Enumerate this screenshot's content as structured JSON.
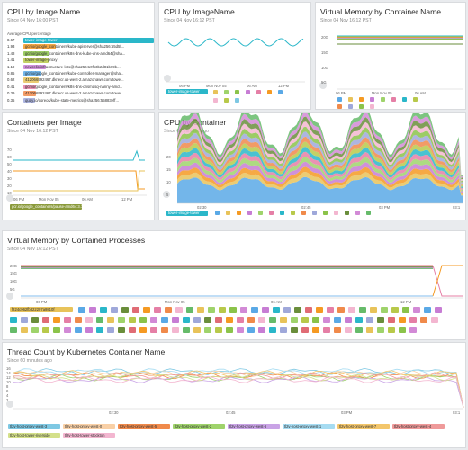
{
  "panels": {
    "cpu_by_image_name": {
      "title": "CPU by Image Name",
      "subtitle": "Since 04 Nov 16:00 PST",
      "header": "Average CPU percentage",
      "rows": [
        {
          "value": "8.67",
          "label": "tower-image-tower",
          "color": "#2ab7c9"
        },
        {
          "value": "1.93",
          "label": "gcr.io/google_containers/kube-apiserver@sha256:55d5f...",
          "color": "#f59a23"
        },
        {
          "value": "1.48",
          "label": "gcr.io/google_containers/k8s-dns-kube-dns-amd64@sha...",
          "color": "#8bc34a"
        },
        {
          "value": "1.41",
          "label": "tower-image-proxy",
          "color": "#b8c94a"
        },
        {
          "value": "1.19",
          "label": "newrelic/infrastructure-k8s@sha256:10fb3b2d81b69b...",
          "color": "#c77dd4"
        },
        {
          "value": "0.85",
          "label": "gcr.io/google_containers/kube-controller-manager@sha...",
          "color": "#5aa9e6"
        },
        {
          "value": "0.62",
          "label": "412066592467.dkr.ecr.us-west-2.amazonaws.com/towe...",
          "color": "#e8c35a"
        },
        {
          "value": "0.41",
          "label": "gcr.io/google_containers/k8s-dns-dnsmasq-nanny-amd...",
          "color": "#e57fa6"
        },
        {
          "value": "0.39",
          "label": "412066592467.dkr.ecr.us-west-2.amazonaws.com/towe...",
          "color": "#f08a4b"
        },
        {
          "value": "0.35",
          "label": "quay.io/coreos/kube-state-metrics@sha256:55883eff...",
          "color": "#9fa8da"
        }
      ]
    },
    "cpu_by_imagename": {
      "title": "CPU by ImageName",
      "subtitle": "Since 04 Nov 16:12 PST",
      "xticks": [
        "06 PM",
        "Mon Nov 05",
        "06 AM",
        "12 PM"
      ],
      "legend": "tower-image-tower",
      "colors": [
        "#e8c35a",
        "#9fd36b",
        "#8bc34a",
        "#c77dd4",
        "#e57fa6",
        "#f59a23",
        "#5aa9e6",
        "#f3b6d0",
        "#b8c94a",
        "#7ec8e3"
      ]
    },
    "vmem_by_container": {
      "title": "Virtual Memory by Container Name",
      "subtitle": "Since 04 Nov 16:12 PST",
      "yticks": [
        "20G",
        "15G",
        "10G",
        "5G"
      ],
      "xticks": [
        "06 PM",
        "Mon Nov 05",
        "06 AM"
      ],
      "colors": [
        "#5aa9e6",
        "#e8c35a",
        "#f59a23",
        "#c77dd4",
        "#9fd36b",
        "#e57fa6",
        "#2ab7c9",
        "#b8c94a",
        "#f08a4b",
        "#9fa8da",
        "#8bc34a",
        "#f3b6d0"
      ]
    },
    "containers_per_image": {
      "title": "Containers per Image",
      "subtitle": "Since 04 Nov 16:12 PST",
      "yticks": [
        "70",
        "60",
        "50",
        "40",
        "30",
        "20",
        "10"
      ],
      "xticks": [
        "06 PM",
        "Mon Nov 05",
        "06 AM",
        "12 PM"
      ],
      "legend": "gcr.io/google_containers/pause-amd64:3.1"
    },
    "cpu_by_container": {
      "title": "CPU by Container",
      "subtitle": "Since 60 minutes ago",
      "yticks": [
        "20",
        "15",
        "10",
        "5"
      ],
      "xticks": [
        "02:30",
        "02:45",
        "03 PM",
        "03:1"
      ],
      "legend": "tower-image-tower",
      "colors": [
        "#5aa9e6",
        "#e8c35a",
        "#f59a23",
        "#c77dd4",
        "#9fd36b",
        "#e57fa6",
        "#2ab7c9",
        "#b8c94a",
        "#f08a4b",
        "#9fa8da",
        "#8bc34a",
        "#f3b6d0",
        "#6a8e3b",
        "#d28ad6",
        "#66bb6a"
      ]
    },
    "vmem_by_processes": {
      "title": "Virtual Memory by Contained Processes",
      "subtitle": "Since 04 Nov 16:12 PST",
      "yticks": [
        "20G",
        "15G",
        "10G",
        "5G"
      ],
      "xticks": [
        "06 PM",
        "Mon Nov 05",
        "06 AM",
        "12 PM"
      ],
      "legend": "f224c962fb322207a9810f",
      "colors": [
        "#5aa9e6",
        "#e8c35a",
        "#f59a23",
        "#c77dd4",
        "#9fd36b",
        "#e57fa6",
        "#2ab7c9",
        "#b8c94a",
        "#f08a4b",
        "#9fa8da",
        "#8bc34a",
        "#f3b6d0",
        "#6a8e3b",
        "#d28ad6",
        "#66bb6a",
        "#e06c75"
      ]
    },
    "thread_count": {
      "title": "Thread Count by Kubernetes Container Name",
      "subtitle": "Since 60 minutes ago",
      "yticks": [
        "16",
        "14",
        "12",
        "10",
        "8",
        "6",
        "4",
        "2"
      ],
      "xticks": [
        "02:30",
        "02:45",
        "03 PM",
        "03:1"
      ],
      "legend": [
        {
          "label": "tl2v-host-proxy-west-3",
          "color": "#7ec8e3"
        },
        {
          "label": "tl2v-host-proxy-west-0",
          "color": "#f9d0a6"
        },
        {
          "label": "tl2v-host-proxy-west-5",
          "color": "#f08a4b"
        },
        {
          "label": "tl2v-host-proxy-west-2",
          "color": "#9fd36b"
        },
        {
          "label": "tl2v-host-proxy-west-6",
          "color": "#c9a3e6"
        },
        {
          "label": "tl2v-host-proxy-west-1",
          "color": "#a6dcf2"
        },
        {
          "label": "tl2v-host-proxy-west-7",
          "color": "#f3c66b"
        },
        {
          "label": "tl2v-host-proxy-west-4",
          "color": "#ef9a9a"
        },
        {
          "label": "tl2v-host-tower-riverside",
          "color": "#d4e08a"
        },
        {
          "label": "tl2v-host-tower-stockton",
          "color": "#f3b6d0"
        }
      ]
    }
  }
}
